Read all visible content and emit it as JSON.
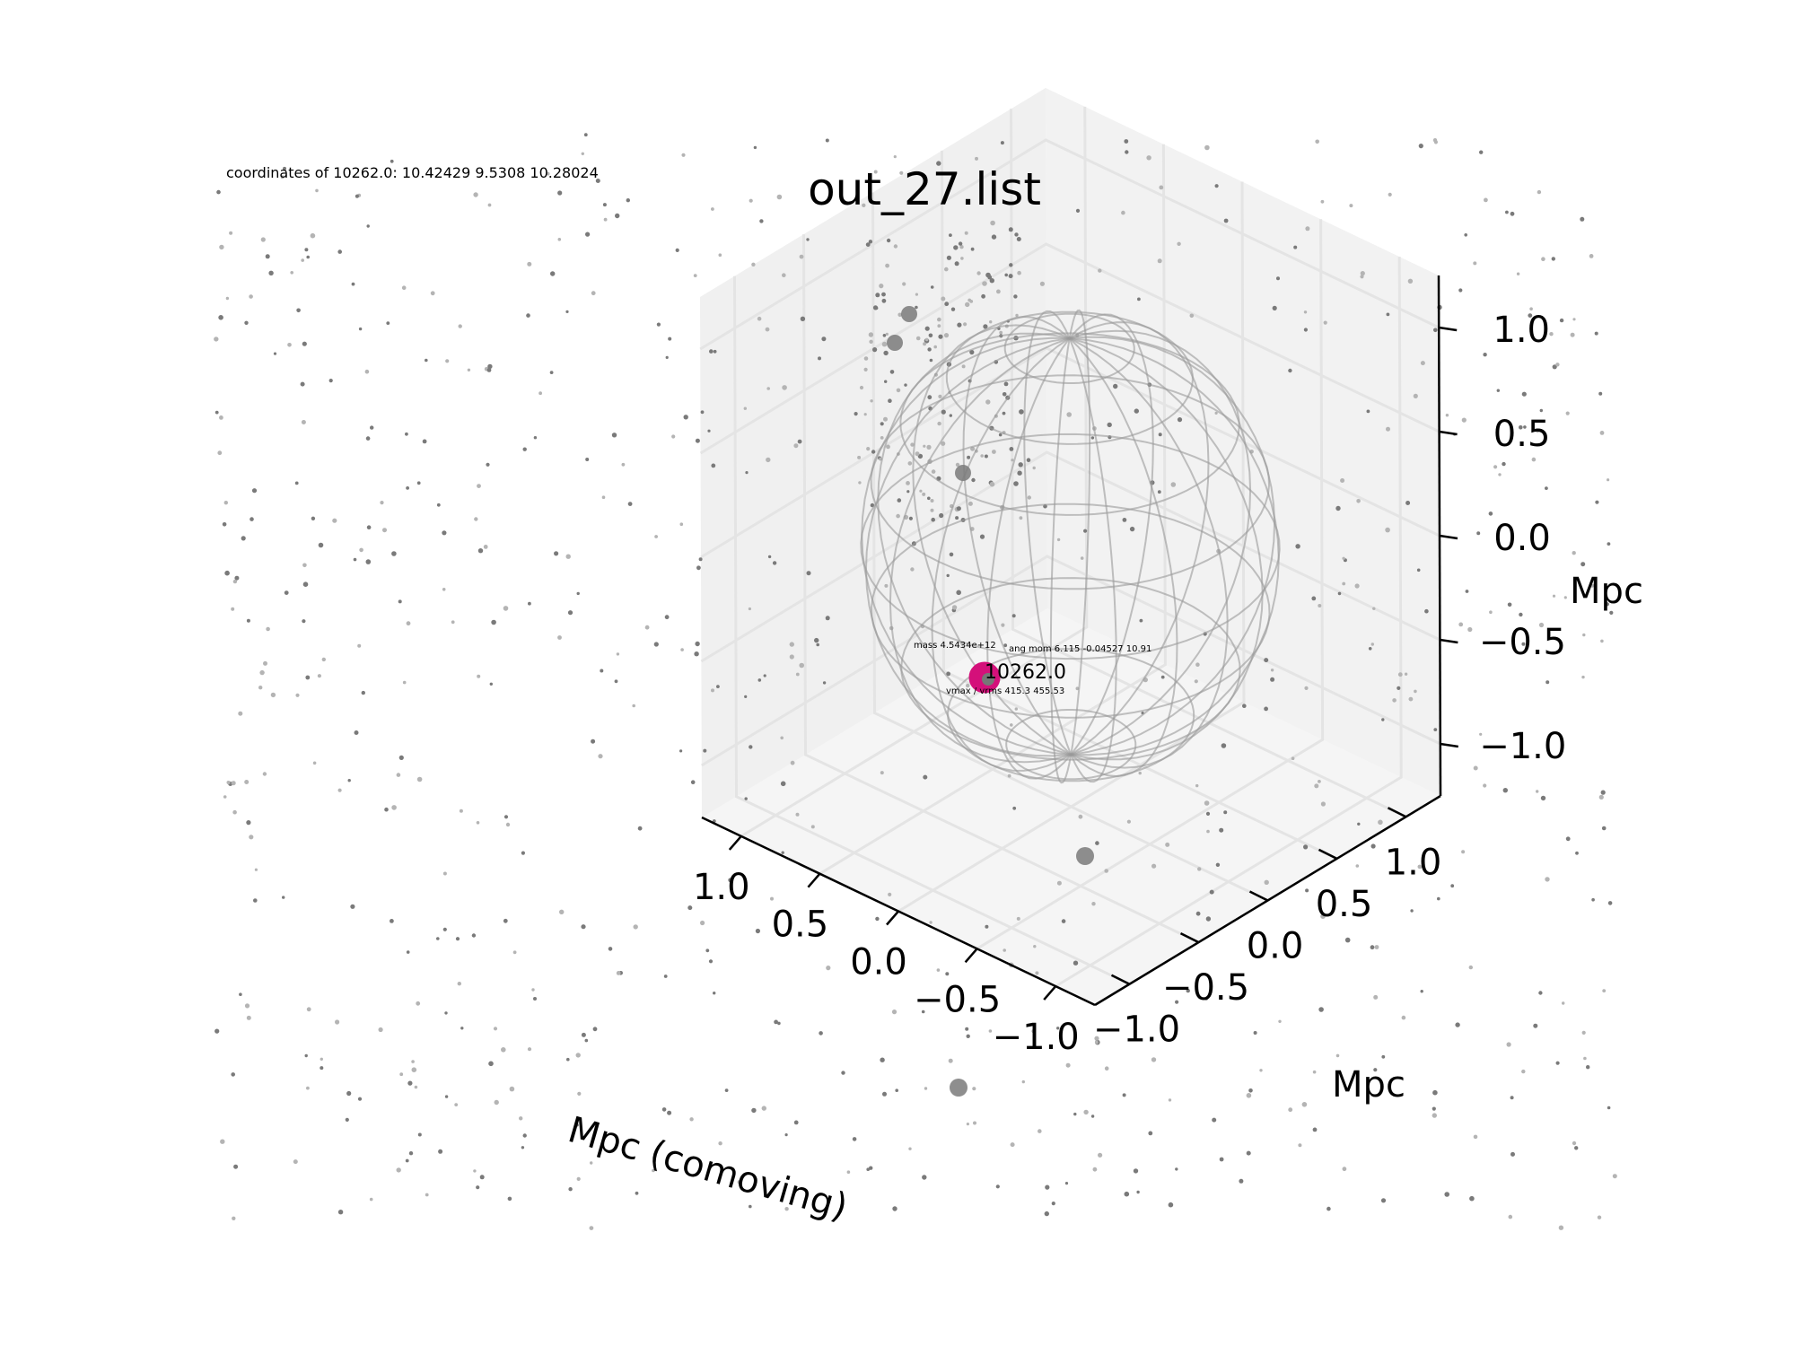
{
  "figure": {
    "title": "out_27.list",
    "coordinates_label": "coordinates of 10262.0: 10.42429 9.5308 10.28024"
  },
  "chart_data": {
    "type": "scatter",
    "projection": "3d",
    "grid": true,
    "axes": {
      "x": {
        "label": "Mpc (comoving)",
        "ticks": [
          "−1.0",
          "−0.5",
          "0.0",
          "0.5",
          "1.0"
        ],
        "range": [
          -1.25,
          1.25
        ]
      },
      "y": {
        "label": "Mpc",
        "ticks": [
          "−1.0",
          "−0.5",
          "0.0",
          "0.5",
          "1.0"
        ],
        "range": [
          -1.25,
          1.25
        ]
      },
      "z": {
        "label": "Mpc",
        "ticks": [
          "−1.0",
          "−0.5",
          "0.0",
          "0.5",
          "1.0"
        ],
        "range": [
          -1.25,
          1.25
        ]
      }
    },
    "central_halo": {
      "id": "10262.0",
      "mass_label": "mass 4.5434e+12",
      "ang_mom_label": "ang mom 6.115 -0.04527 10.91",
      "vel_label": "vmax / vrms 415.3 455.53",
      "color": "#d4107a"
    },
    "wireframe_sphere": {
      "radius_mpc": 1.0,
      "color": "#9a9a9a"
    },
    "colors": {
      "particles": "#8a8a8a",
      "subhalos": "#7a7a7a",
      "pane": "#f2f2f2",
      "gridline": "#e4e4e4"
    }
  }
}
